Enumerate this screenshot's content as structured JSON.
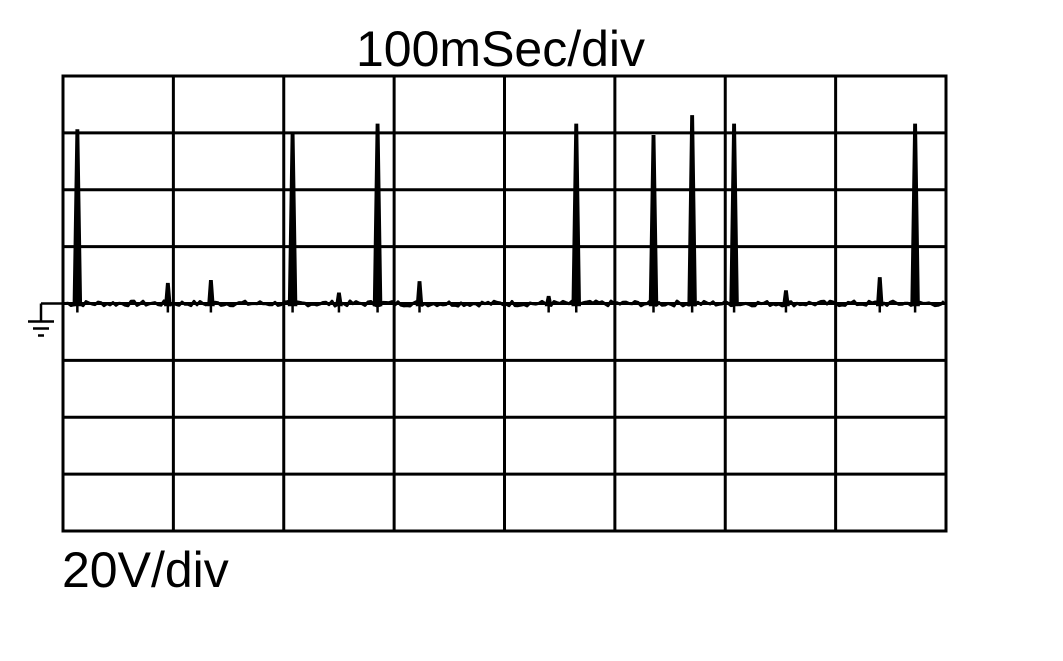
{
  "chart_data": {
    "type": "line",
    "title": "100mSec/div",
    "xlabel": "",
    "ylabel": "20V/div",
    "x_divisions": 8,
    "y_divisions": 8,
    "divisions_above_ground": 4,
    "xlim": [
      0,
      8
    ],
    "ylim": [
      -4,
      4
    ],
    "grid": true,
    "ground_marker": "ground-symbol",
    "trace_color": "#000000",
    "grid_color": "#000000",
    "series": [
      {
        "values": [
          {
            "x": 0.13,
            "y": 3.05
          },
          {
            "x": 0.95,
            "y": 0.35
          },
          {
            "x": 1.34,
            "y": 0.4
          },
          {
            "x": 2.08,
            "y": 3.0
          },
          {
            "x": 2.5,
            "y": 0.18
          },
          {
            "x": 2.85,
            "y": 3.15
          },
          {
            "x": 3.23,
            "y": 0.38
          },
          {
            "x": 4.4,
            "y": 0.12
          },
          {
            "x": 4.65,
            "y": 3.15
          },
          {
            "x": 5.35,
            "y": 2.95
          },
          {
            "x": 5.7,
            "y": 3.3
          },
          {
            "x": 6.08,
            "y": 3.15
          },
          {
            "x": 6.55,
            "y": 0.22
          },
          {
            "x": 7.4,
            "y": 0.45
          },
          {
            "x": 7.72,
            "y": 3.15
          }
        ]
      }
    ]
  }
}
